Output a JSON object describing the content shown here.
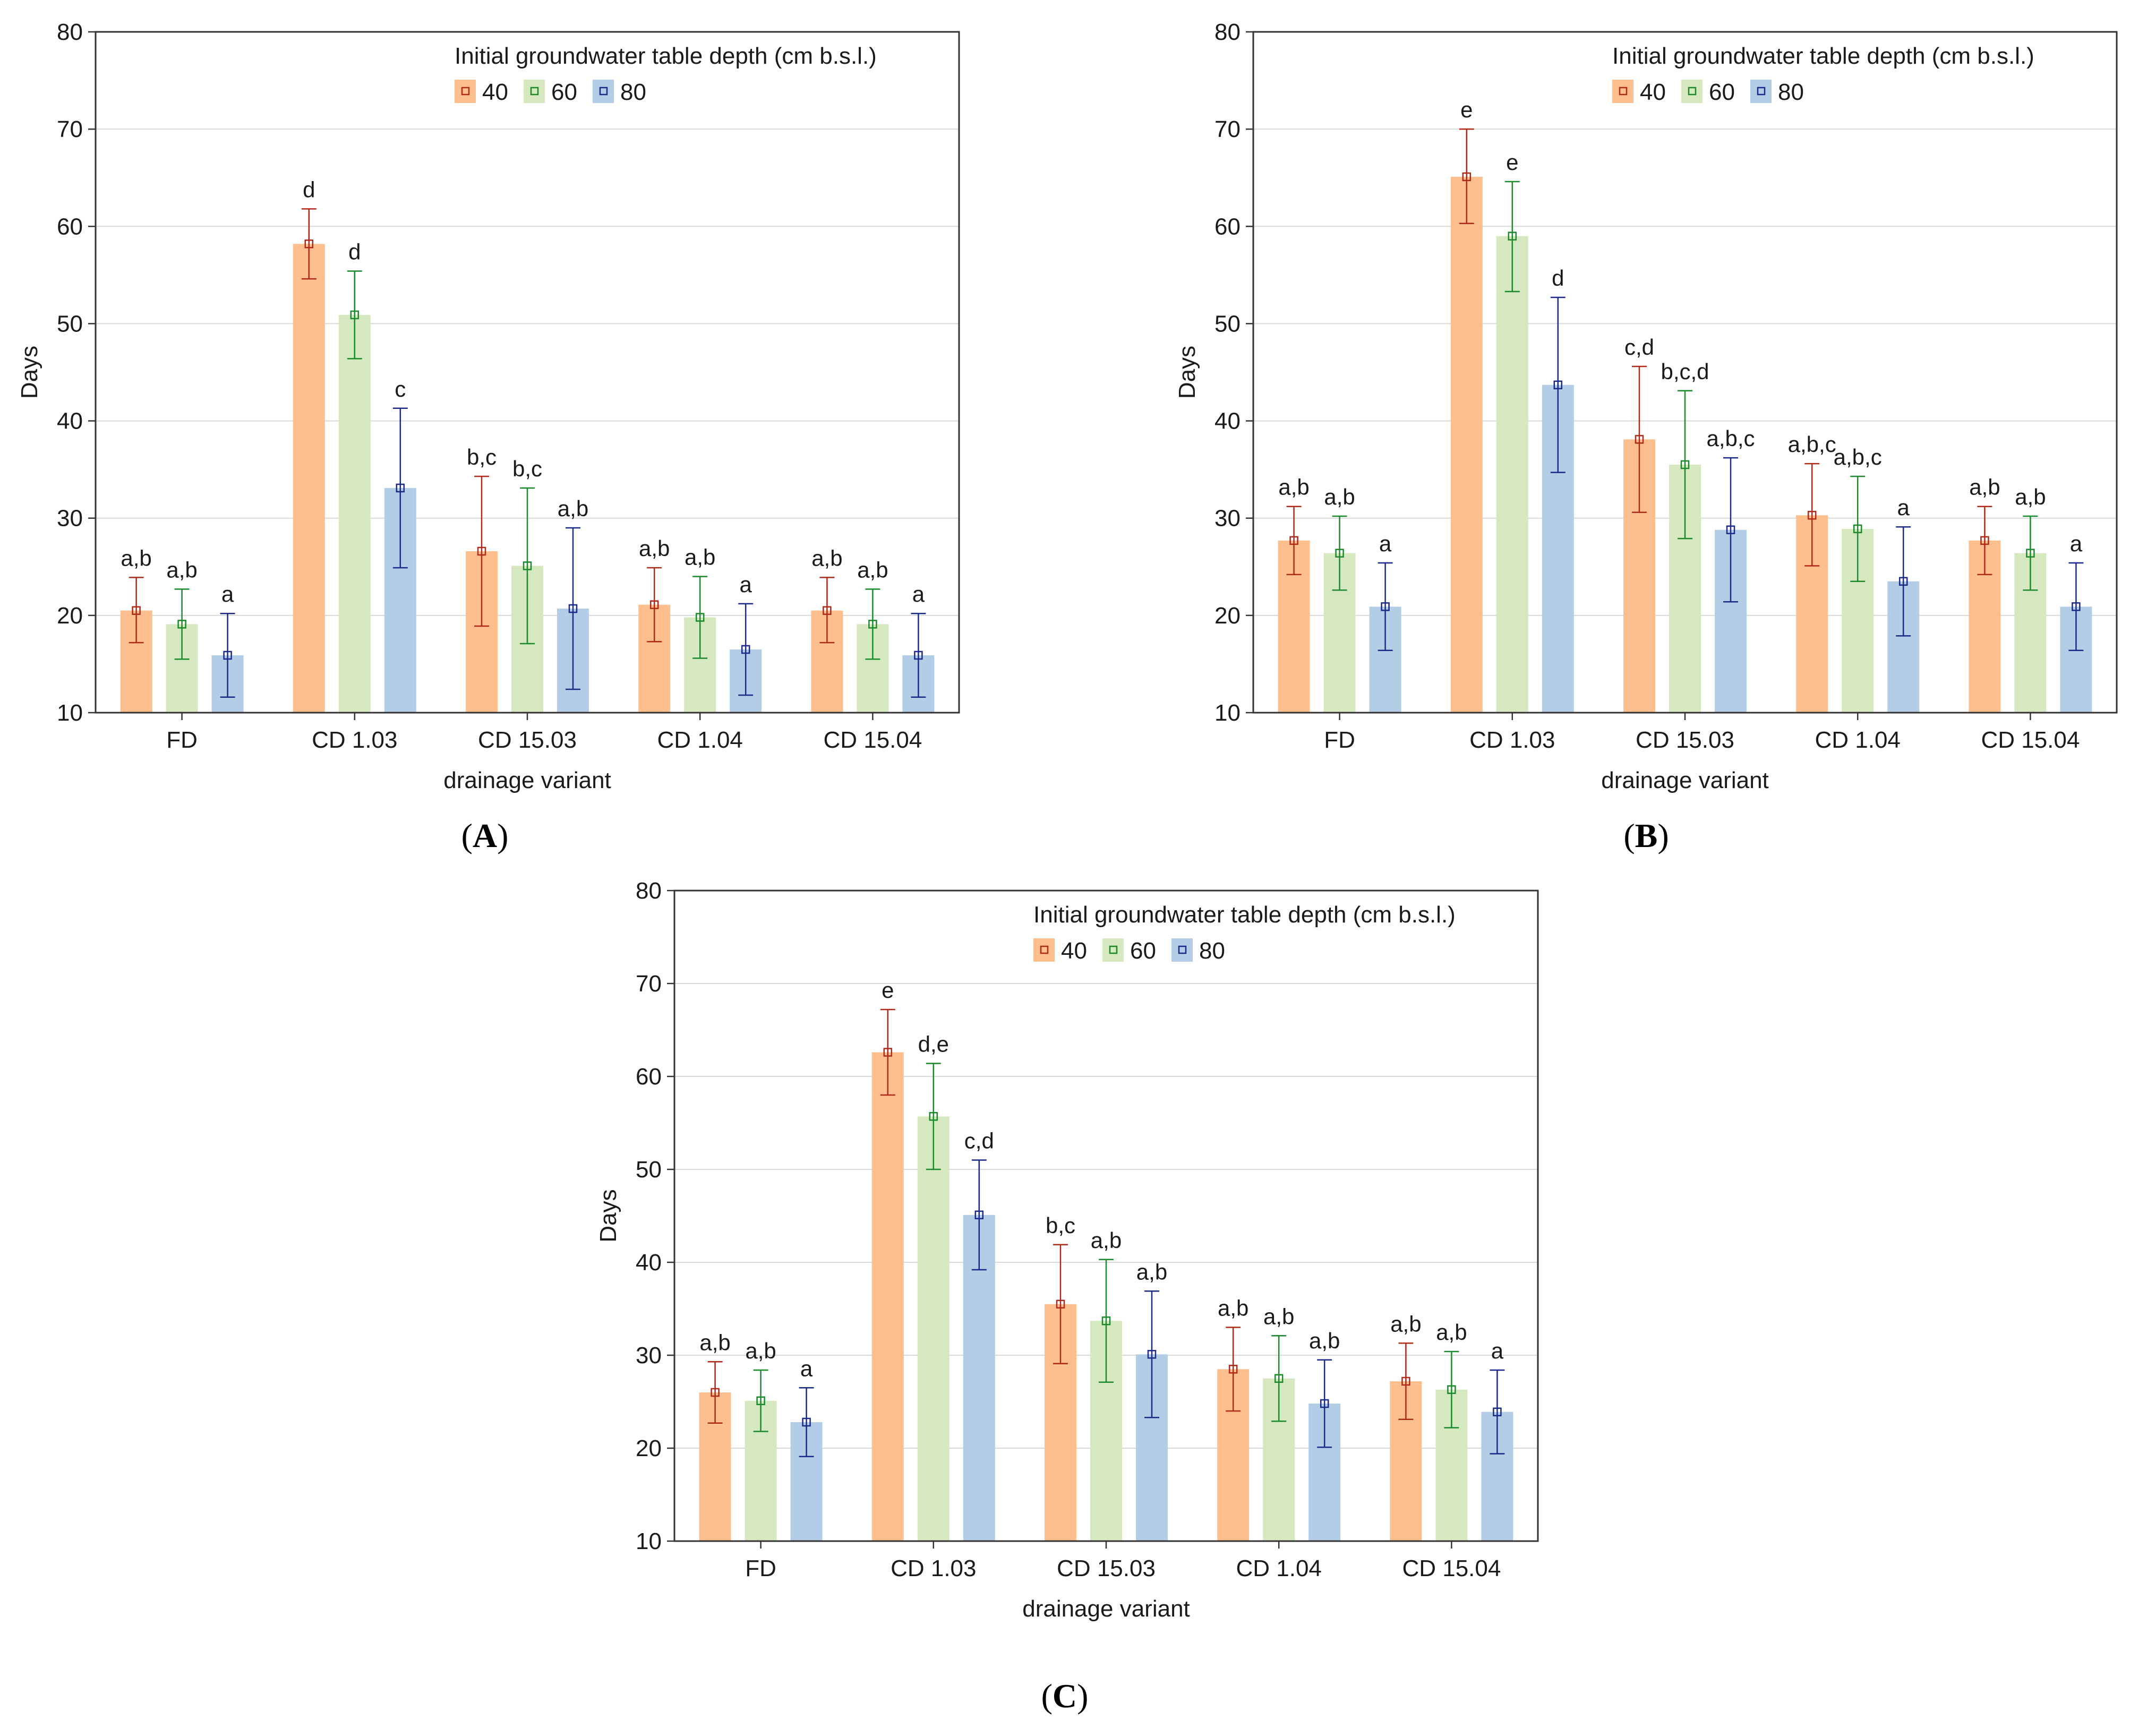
{
  "panels": [
    {
      "label": "A",
      "legend_title": "Initial groundwater table depth (cm b.s.l.)",
      "chart_data": {
        "type": "bar",
        "xlabel": "drainage variant",
        "ylabel": "Days",
        "ylim": [
          10,
          80
        ],
        "yticks": [
          10,
          20,
          30,
          40,
          50,
          60,
          70,
          80
        ],
        "grid": true,
        "legend_position": "top-right",
        "categories": [
          "FD",
          "CD 1.03",
          "CD 15.03",
          "CD 1.04",
          "CD 15.04"
        ],
        "series": [
          {
            "name": "40",
            "values": [
              20.5,
              58.2,
              26.6,
              21.1,
              20.5
            ],
            "err_low": [
              17.2,
              54.6,
              18.9,
              17.3,
              17.2
            ],
            "err_high": [
              23.9,
              61.8,
              34.3,
              24.9,
              23.9
            ],
            "letters": [
              "a,b",
              "d",
              "b,c",
              "a,b",
              "a,b"
            ]
          },
          {
            "name": "60",
            "values": [
              19.1,
              50.9,
              25.1,
              19.8,
              19.1
            ],
            "err_low": [
              15.5,
              46.4,
              17.1,
              15.6,
              15.5
            ],
            "err_high": [
              22.7,
              55.4,
              33.1,
              24.0,
              22.7
            ],
            "letters": [
              "a,b",
              "d",
              "b,c",
              "a,b",
              "a,b"
            ]
          },
          {
            "name": "80",
            "values": [
              15.9,
              33.1,
              20.7,
              16.5,
              15.9
            ],
            "err_low": [
              11.6,
              24.9,
              12.4,
              11.8,
              11.6
            ],
            "err_high": [
              20.2,
              41.3,
              29.0,
              21.2,
              20.2
            ],
            "letters": [
              "a",
              "c",
              "a,b",
              "a",
              "a"
            ]
          }
        ]
      }
    },
    {
      "label": "B",
      "legend_title": "Initial groundwater table depth (cm b.s.l.)",
      "chart_data": {
        "type": "bar",
        "xlabel": "drainage variant",
        "ylabel": "Days",
        "ylim": [
          10,
          80
        ],
        "yticks": [
          10,
          20,
          30,
          40,
          50,
          60,
          70,
          80
        ],
        "grid": true,
        "legend_position": "top-right",
        "categories": [
          "FD",
          "CD 1.03",
          "CD 15.03",
          "CD 1.04",
          "CD 15.04"
        ],
        "series": [
          {
            "name": "40",
            "values": [
              27.7,
              65.1,
              38.1,
              30.3,
              27.7
            ],
            "err_low": [
              24.2,
              60.3,
              30.6,
              25.1,
              24.2
            ],
            "err_high": [
              31.2,
              70.0,
              45.6,
              35.6,
              31.2
            ],
            "letters": [
              "a,b",
              "e",
              "c,d",
              "a,b,c",
              "a,b"
            ]
          },
          {
            "name": "60",
            "values": [
              26.4,
              59.0,
              35.5,
              28.9,
              26.4
            ],
            "err_low": [
              22.6,
              53.3,
              27.9,
              23.5,
              22.6
            ],
            "err_high": [
              30.2,
              64.6,
              43.1,
              34.3,
              30.2
            ],
            "letters": [
              "a,b",
              "e",
              "b,c,d",
              "a,b,c",
              "a,b"
            ]
          },
          {
            "name": "80",
            "values": [
              20.9,
              43.7,
              28.8,
              23.5,
              20.9
            ],
            "err_low": [
              16.4,
              34.7,
              21.4,
              17.9,
              16.4
            ],
            "err_high": [
              25.4,
              52.7,
              36.2,
              29.1,
              25.4
            ],
            "letters": [
              "a",
              "d",
              "a,b,c",
              "a",
              "a"
            ]
          }
        ]
      }
    },
    {
      "label": "C",
      "legend_title": "Initial groundwater table depth (cm b.s.l.)",
      "chart_data": {
        "type": "bar",
        "xlabel": "drainage variant",
        "ylabel": "Days",
        "ylim": [
          10,
          80
        ],
        "yticks": [
          10,
          20,
          30,
          40,
          50,
          60,
          70,
          80
        ],
        "grid": true,
        "legend_position": "top-right",
        "categories": [
          "FD",
          "CD 1.03",
          "CD 15.03",
          "CD 1.04",
          "CD 15.04"
        ],
        "series": [
          {
            "name": "40",
            "values": [
              26.0,
              62.6,
              35.5,
              28.5,
              27.2
            ],
            "err_low": [
              22.7,
              58.0,
              29.1,
              24.0,
              23.1
            ],
            "err_high": [
              29.3,
              67.2,
              41.9,
              33.0,
              31.3
            ],
            "letters": [
              "a,b",
              "e",
              "b,c",
              "a,b",
              "a,b"
            ]
          },
          {
            "name": "60",
            "values": [
              25.1,
              55.7,
              33.7,
              27.5,
              26.3
            ],
            "err_low": [
              21.8,
              50.0,
              27.1,
              22.9,
              22.2
            ],
            "err_high": [
              28.4,
              61.4,
              40.3,
              32.1,
              30.4
            ],
            "letters": [
              "a,b",
              "d,e",
              "a,b",
              "a,b",
              "a,b"
            ]
          },
          {
            "name": "80",
            "values": [
              22.8,
              45.1,
              30.1,
              24.8,
              23.9
            ],
            "err_low": [
              19.1,
              39.2,
              23.3,
              20.1,
              19.4
            ],
            "err_high": [
              26.5,
              51.0,
              36.9,
              29.5,
              28.4
            ],
            "letters": [
              "a",
              "c,d",
              "a,b",
              "a,b",
              "a"
            ]
          }
        ]
      }
    }
  ],
  "colors": {
    "bar_fill": [
      "#fdbf8d",
      "#d5e8c0",
      "#b4cde6"
    ],
    "err_stroke": [
      "#b02a1a",
      "#1a8a2a",
      "#1a2a8a"
    ],
    "grid": "#d9d9d9",
    "axis": "#333333"
  }
}
